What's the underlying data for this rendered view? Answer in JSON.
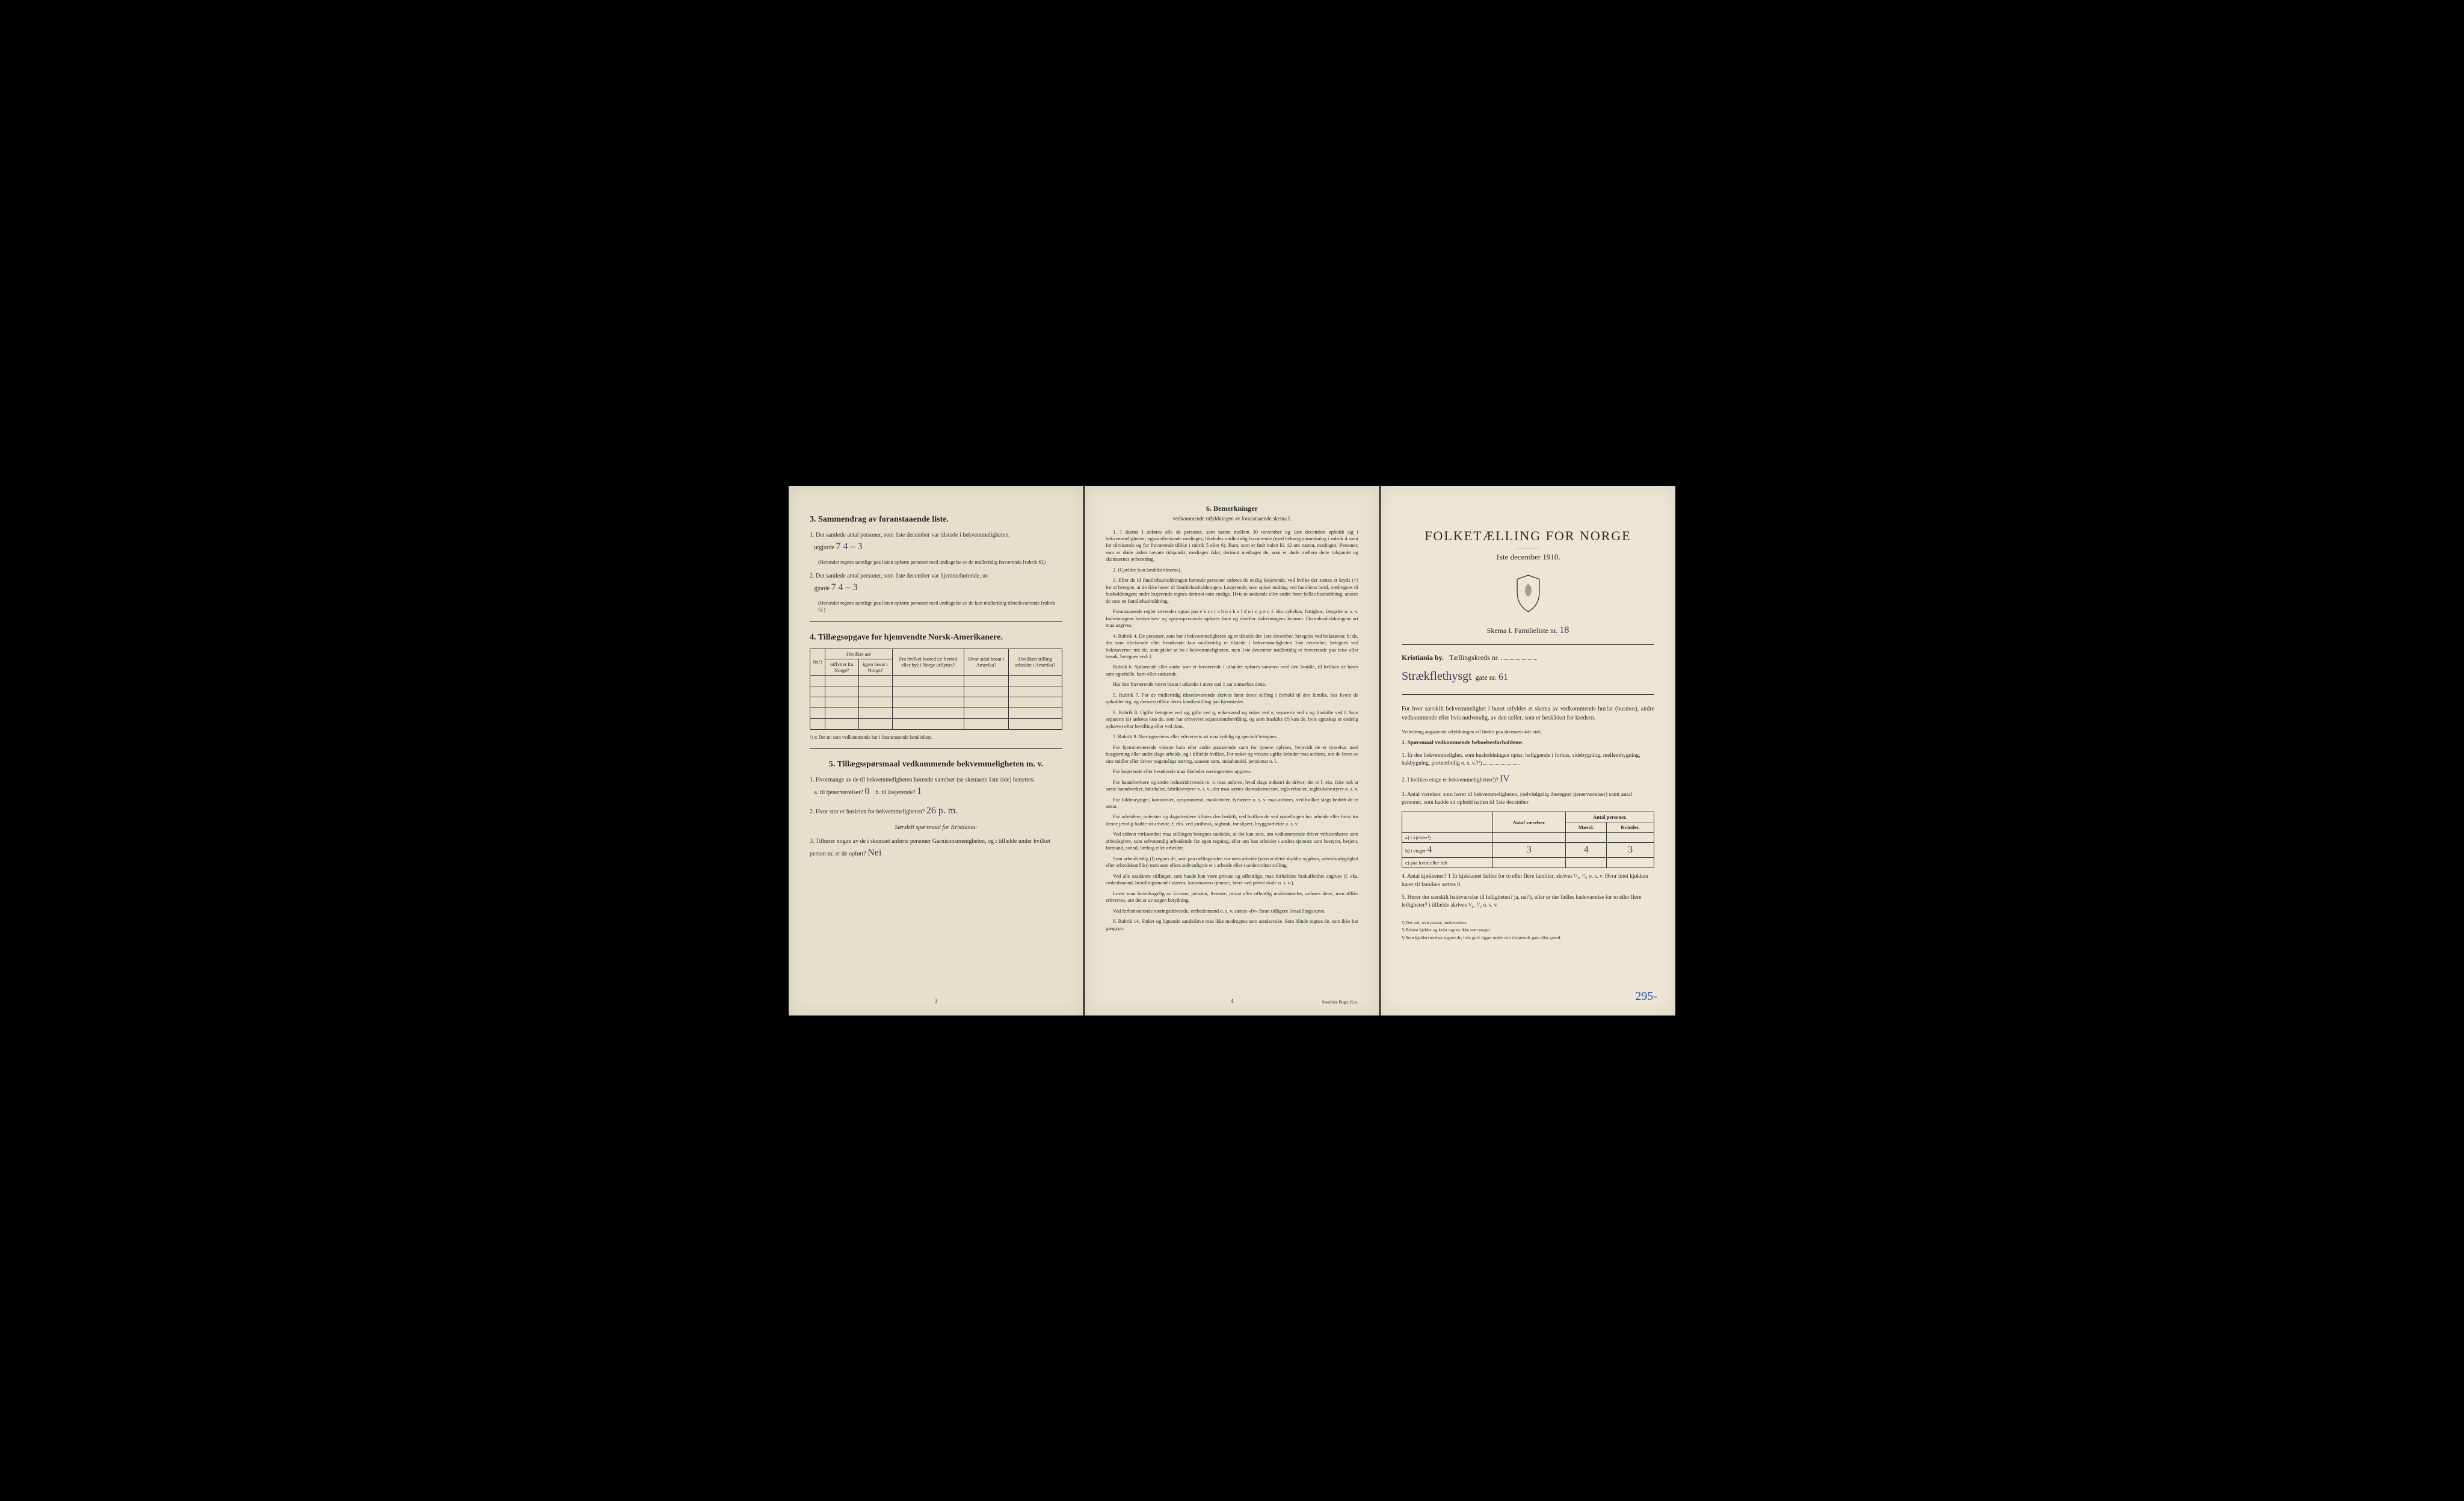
{
  "page3": {
    "section3": {
      "title": "3.  Sammendrag av foranstaaende liste.",
      "q1": "Det samlede antal personer, som 1ste december var tilstede i bekvemmeligheten,",
      "q1_label": "utgjorde",
      "q1_val": "7        4 – 3",
      "q1_paren": "(Herunder regnes samtlige paa listen opførte personer med undtagelse av de midlertidig fraværende [rubrik 6].)",
      "q2": "Det samlede antal personer, som 1ste december var hjemmehørende, ut-",
      "q2_label": "gjorde",
      "q2_val": "7        4 – 3",
      "q2_paren": "(Herunder regnes samtlige paa listen opførte personer med undtagelse av de kun midlertidig tilstedeværende [rubrik 5].)"
    },
    "section4": {
      "title": "4.  Tillægsopgave for hjemvendte Norsk-Amerikanere.",
      "headers": {
        "nr": "Nr.¹)",
        "col1a": "I hvilket aar",
        "col1b": "utflyttet fra Norge?",
        "col1c": "igjen bosat i Norge?",
        "col2": "Fra hvilket bosted (ɔ: herred eller by) i Norge utflyttet?",
        "col3": "Hvor sidst bosat i Amerika?",
        "col4": "I hvilken stilling arbeidet i Amerika?"
      },
      "footnote": "¹) ɔ: Det nr. som vedkommende har i foranstaaende familieliste."
    },
    "section5": {
      "title": "5.  Tillægsspørsmaal vedkommende bekvemmeligheten m. v.",
      "q1": "Hvormange av de til bekvemmeligheten hørende værelser (se skemaets 1ste side) benyttes:",
      "q1a_label": "a. til tjenerværelser?",
      "q1a_val": "0",
      "q1b_label": "b. til losjerende?",
      "q1b_val": "1",
      "q2_label": "Hvor stor er husleien for bekvemmeligheten?",
      "q2_val": "26 p. m.",
      "sub": "Særskilt spørsmaal for Kristiania:",
      "q3": "Tilhører nogen av de i skemaet anførte personer Garnisonsmenigheten, og i tilfælde under hvilket person-nr. er de opført?",
      "q3_val": "Nei"
    },
    "page_num": "3"
  },
  "page4": {
    "title": "6.  Bemerkninger",
    "subtitle": "vedkommende utfyldningen av foranstaaende skema I.",
    "paras": [
      "1.  I skema I anføres alle de personer, som natten mellem 30 november og 1ste december opholdt sig i bekvemmeligheten; ogsaa tilreisende medtages; likeledes midlertidig fraværende (med behørig anmerkning i rubrik 4 samt for tilreisende og for fraværende tillike i rubrik 5 eller 6). Barn, som er født inden kl. 12 om natten, medtages. Personer, som er døde inden nævnte tidspunkt, medtages ikke; derimot medtages de, som er døde mellem dette tidspunkt og skemaernes avhentning.",
      "2.  (Gjælder kun landdistrikterne).",
      "3.  Efter de til familiehusholdningen hørende personer anføres de enslig losjerende, ved hvilke der sættes et kryds (×) for at betegne, at de ikke hører til familiehusholdningen. Losjerende, som spiser middag ved familiens bord, medregnes til husholdningen; andre losjerende regnes derimot som enslige. Hvis to søskende eller andre fører fælles husholdning, ansees de som en familiehusholdning.",
      "Foranstaaende regler anvendes ogsaa paa e k s t r a h u s h o l d n i n g e r, f. eks. sykehus, fattighus, fængsler o. s. v. Indretningens bestyrelses- og opsynspersonale opføres først og derefter indretningens lemmer. Ekstrahusholdningens art maa angives.",
      "4.  Rubrik 4. De personer, som bor i bekvemmeligheten og er tilstede der 1ste december, betegnes ved bokstaven: b; de, der som tilreisende eller besøkende kun midlertidig er tilstede i bekvemmeligheten 1ste december, betegnes ved bokstaverne: mt; de, som pleier at bo i bekvemmeligheten, men 1ste december midlertidig er fraværende paa reise eller besøk, betegnes ved: f.",
      "Rubrik 6. Sjøfarende eller andre som er fraværende i utlandet opføres sammen med den familie, til hvilken de hører som egtefælle, barn eller søskende.",
      "Har den fraværende været bosat i utlandet i mere end 1 aar anmerkes dette.",
      "5.  Rubrik 7. For de midlertidig tilstedeværende skrives først deres stilling i forhold til den familie, hos hvem de opholder sig, og dernæst tillike deres familiestilling paa hjemstedet.",
      "6.  Rubrik 8. Ugifte betegnes ved ug, gifte ved g, enkemænd og enker ved e, separerte ved s og fraskilte ved f. Som separerte (s) anføres kun de, som har erhvervet separationsbevilling, og som fraskilte (f) kun de, hvis egteskap er endelig ophævet efter bevilling eller ved dom.",
      "7.  Rubrik 9. Næringsveiens eller erhvervets art maa tydelig og specielt betegnes.",
      "For hjemmeværende voksne barn eller andre paarørende samt for tjenere oplyses, hvorvidt de er sysselsat med husgjerning eller andet slags arbeide, og i tilfælde hvilket. For enker og voksne ugifte kvinder maa anføres, om de lever av sine midler eller driver nogenslags næring, saasom søm, smaahandel, pensionat o. l.",
      "For losjerende eller besøkende maa likeledes næringsveien opgives.",
      "For haandverkere og andre industridrivende m. v. maa anføres, hvad slags industri de driver; det er f. eks. ikke nok at sætte haandverker, fabrikeier, fabrikbestyrer o. s. v.; der maa sættes skomakermester, teglverkseier, sagbruksbestyrer o. s. v.",
      "For fuldmægtiger, kontorister, opsynsmænd, maskinister, fyrbøtere o. s. v. maa anføres, ved hvilket slags bedrift de er ansat.",
      "For arbeidere, inderster og dagarbeidere tilføies den bedrift, ved hvilken de ved optællingen har arbeide eller forut for denne jevnlig hadde sit arbeide, f. eks. ved jordbruk, sagbruk, træsliperi, bryggearbeide o. s. v.",
      "Ved enhver virksomhet maa stillingen betegnes saaledes, at det kan sees, om vedkommende driver virksomheten som arbeidsgiver, som selvstændig arbeidende for egen regning, eller om han arbeider i andres tjeneste som bestyrer, betjent, formand, svend, lærling eller arbeider.",
      "Som arbeidsledig (l) regnes de, som paa tællingstiden var uten arbeide (uten at dette skyldes sygdom, arbeidsudygtighet eller arbeidskonflikt) men som ellers sedvanligvis er i arbeide eller i underordnet stilling.",
      "Ved alle saadanne stillinger, som baade kan være private og offentlige, maa forholdets beskaffenhet angives (f. eks. embedsmand, bestillingsmand i statens, kommunens tjeneste, lærer ved privat skole o. s. v.).",
      "Lever man hovedsagelig av formue, pension, livrente, privat eller offentlig understøttelse, anføres dette, men tillike erhvervet, om det er av nogen betydning.",
      "Ved forhenværende næringsdrivende, embedsmænd o. s. v. sættes «fv» foran tidligere livsstillings navn.",
      "8.  Rubrik 14. Sinker og lignende aandssløve maa ikke medregnes som aandssvake. Som blinde regnes de, som ikke har gangsyn."
    ],
    "page_num": "4",
    "printer": "Steen'ske Bogtr. Kr.a."
  },
  "pageRight": {
    "main_title": "FOLKETÆLLING FOR NORGE",
    "date": "1ste december 1910.",
    "skema": "Skema I.   Familieliste nr.",
    "skema_val": "18",
    "city_label": "Kristiania by.",
    "kreds_label": "Tællingskreds nr.",
    "gate_name": "Strækflethysgt",
    "gate_label": "gate nr.",
    "gate_nr": "61",
    "intro": "For hver særskilt bekvemmelighet i huset utfyldes et skema av vedkommende husfar (husmor), andre vedkommende eller hvis nødvendig, av den tæller, som er beskikket for kredsen.",
    "intro_small": "Veiledning angaaende utfyldningen vil findes paa skemaets 4de side.",
    "section1_title": "1. Spørsmaal vedkommende beboelsesforholdene:",
    "q1": "Er den bekvemmelighet, som husholdningen optar, beliggende i forhus, sidebygning, mellembygning, bakbygning, portnerbolig o. s. v.?¹)",
    "q2_label": "I hvilken etage er bekvemmeligheten²)?",
    "q2_val": "IV",
    "q3": "Antal værelser, som hører til bekvemmeligheten, (selvfølgelig iberegnet tjenerværelser) samt antal personer, som hadde sit ophold natten til 1ste december",
    "table": {
      "h_rooms": "Antal værelser.",
      "h_persons": "Antal personer.",
      "h_m": "Mænd.",
      "h_k": "Kvinder.",
      "row_a": "a) i kjelder³)",
      "row_b": "b) i etager",
      "row_b_etage": "4",
      "row_b_rooms": "3",
      "row_b_m": "4",
      "row_b_k": "3",
      "row_c": "c) paa kvist eller loft"
    },
    "q4": "Antal kjøkkener?       1     Er kjøkkenet fælles for to eller flere familier, skrives ¹/₂, ¹/₃ o. s. v. Hvor intet kjøkken hører til familien sættes 0.",
    "q5": "Hører der særskilt badeværelse til leiligheten? ja, nei¹), eller er der fælles badeværelse for to eller flere leiligheter? i tilfælde skrives ¹/₂, ¹/₃ o. s. v.",
    "fn1": "¹) Det ord, som passer, understrekes.",
    "fn2": "²) Bebost kjelder og kvist regnes ikke som etager.",
    "fn3": "³) Som kjelderværelser regnes de, hvis gulv ligger under den tilstøtende gate eller grund.",
    "corner": "295-"
  },
  "colors": {
    "paper": "#e8e2d0",
    "text": "#2a2a2a",
    "handwriting": "#3a3a6a",
    "blue": "#2a5aaa"
  }
}
